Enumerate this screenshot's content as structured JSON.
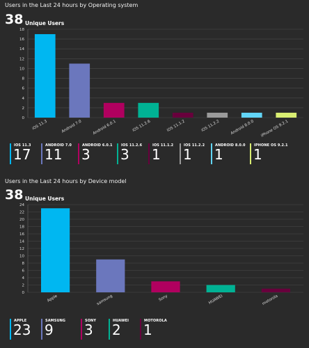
{
  "panel1": {
    "title": "Users in the Last 24 hours by Operating system",
    "count": "38",
    "count_label": "Unique Users",
    "legend": [
      {
        "label": "IOS 11.3",
        "value": "17",
        "color": "#00b7f1"
      },
      {
        "label": "ANDROID 7.0",
        "value": "11",
        "color": "#6b77bd"
      },
      {
        "label": "ANDROID 6.0.1",
        "value": "3",
        "color": "#b0005f"
      },
      {
        "label": "IOS 11.2.6",
        "value": "3",
        "color": "#00b294"
      },
      {
        "label": "IOS 11.1.2",
        "value": "1",
        "color": "#68003c"
      },
      {
        "label": "IOS 11.2.2",
        "value": "1",
        "color": "#9b9b9b"
      },
      {
        "label": "ANDROID 8.0.0",
        "value": "1",
        "color": "#62d5f7"
      },
      {
        "label": "IPHONE OS 9.2.1",
        "value": "1",
        "color": "#d9ee72"
      }
    ]
  },
  "panel2": {
    "title": "Users in the Last 24 hours by Device model",
    "count": "38",
    "count_label": "Unique Users",
    "legend": [
      {
        "label": "APPLE",
        "value": "23",
        "color": "#00b7f1"
      },
      {
        "label": "SAMSUNG",
        "value": "9",
        "color": "#6b77bd"
      },
      {
        "label": "SONY",
        "value": "3",
        "color": "#b0005f"
      },
      {
        "label": "HUAWEI",
        "value": "2",
        "color": "#00b294"
      },
      {
        "label": "MOTOROLA",
        "value": "1",
        "color": "#68003c"
      }
    ]
  },
  "chart_data": [
    {
      "type": "bar",
      "title": "Users in the Last 24 hours by Operating system",
      "categories": [
        "iOS 11.3",
        "Android 7.0",
        "Android 6.0.1",
        "iOS 11.2.6",
        "iOS 11.1.2",
        "iOS 11.2.2",
        "Android 8.0.0",
        "iPhone OS 9.2.1"
      ],
      "values": [
        17,
        11,
        3,
        3,
        1,
        1,
        1,
        1
      ],
      "colors": [
        "#00b7f1",
        "#6b77bd",
        "#b0005f",
        "#00b294",
        "#68003c",
        "#9b9b9b",
        "#62d5f7",
        "#d9ee72"
      ],
      "yticks": [
        "0",
        "2",
        "4",
        "6",
        "8",
        "10",
        "12",
        "14",
        "16",
        "18"
      ],
      "ylim": [
        0,
        18
      ],
      "grid": true
    },
    {
      "type": "bar",
      "title": "Users in the Last 24 hours by Device model",
      "categories": [
        "Apple",
        "samsung",
        "Sony",
        "HUAWEI",
        "motorola"
      ],
      "values": [
        23,
        9,
        3,
        2,
        1
      ],
      "colors": [
        "#00b7f1",
        "#6b77bd",
        "#b0005f",
        "#00b294",
        "#68003c"
      ],
      "yticks": [
        "0",
        "2",
        "4",
        "6",
        "8",
        "10",
        "12",
        "14",
        "16",
        "18",
        "20",
        "22",
        "24"
      ],
      "ylim": [
        0,
        24
      ],
      "grid": true
    }
  ]
}
